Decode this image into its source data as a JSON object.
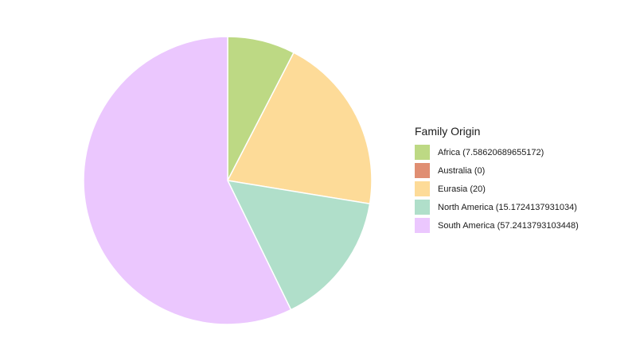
{
  "chart_data": {
    "type": "pie",
    "title": "",
    "legend_title": "Family Origin",
    "legend_position": "right",
    "start_angle_deg": 0,
    "direction": "clockwise",
    "slices": [
      {
        "label": "Africa (7.58620689655172)",
        "value": 7.58620689655172,
        "color": "#bdd984"
      },
      {
        "label": "Australia (0)",
        "value": 0,
        "color": "#e08e72"
      },
      {
        "label": "Eurasia (20)",
        "value": 20,
        "color": "#fddb98"
      },
      {
        "label": "North America (15.1724137931034)",
        "value": 15.1724137931034,
        "color": "#b0dfca"
      },
      {
        "label": "South America (57.2413793103448)",
        "value": 57.2413793103448,
        "color": "#ebc7fe"
      }
    ]
  }
}
